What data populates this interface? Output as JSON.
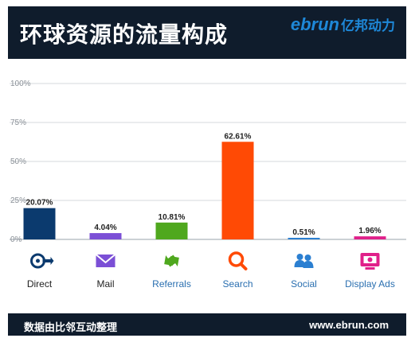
{
  "header": {
    "title": "环球资源的流量构成",
    "brand_latin": "ebrun",
    "brand_cn": "亿邦动力"
  },
  "footer": {
    "note": "数据由比邻互动整理",
    "url": "www.ebrun.com"
  },
  "colors": {
    "header_bg": "#0f1c2c",
    "brand": "#1e88d8"
  },
  "chart_data": {
    "type": "bar",
    "categories": [
      "Direct",
      "Mail",
      "Referrals",
      "Search",
      "Social",
      "Display Ads"
    ],
    "values": [
      20.07,
      4.04,
      10.81,
      62.61,
      0.51,
      1.96
    ],
    "value_labels": [
      "20.07%",
      "4.04%",
      "10.81%",
      "62.61%",
      "0.51%",
      "1.96%"
    ],
    "bar_colors": [
      "#0b3a6e",
      "#7b4fd6",
      "#4fa81e",
      "#ff4a05",
      "#2b7fd1",
      "#e0208a"
    ],
    "category_icons": [
      "direct-target-icon",
      "mail-envelope-icon",
      "referrals-arrows-icon",
      "search-magnifier-icon",
      "social-people-icon",
      "display-ads-icon"
    ],
    "title": "",
    "xlabel": "",
    "ylabel": "",
    "ylim": [
      0,
      100
    ],
    "yticks": [
      "0%",
      "25%",
      "50%",
      "75%",
      "100%"
    ],
    "grid": true,
    "legend": "none"
  }
}
